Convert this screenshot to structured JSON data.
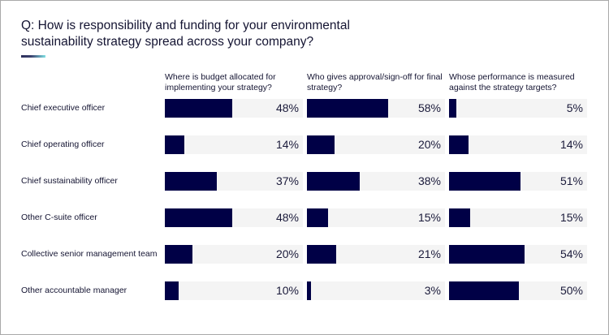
{
  "title": "Q: How is responsibility and funding for your environmental sustainability strategy spread across your company?",
  "colors": {
    "bar": "#000046",
    "track": "#f4f4f4",
    "accent_start": "#2c2f5a",
    "accent_end": "#7fe0e3"
  },
  "chart_data": {
    "type": "bar",
    "orientation": "horizontal",
    "title": "Q: How is responsibility and funding for your environmental sustainability strategy spread across your company?",
    "xlim": [
      0,
      100
    ],
    "unit": "%",
    "categories": [
      "Chief executive officer",
      "Chief operating officer",
      "Chief sustainability officer",
      "Other C-suite officer",
      "Collective senior management team",
      "Other accountable manager"
    ],
    "series": [
      {
        "name": "Where is budget allocated for implementing your strategy?",
        "values": [
          48,
          14,
          37,
          48,
          20,
          10
        ]
      },
      {
        "name": "Who gives approval/sign-off for final strategy?",
        "values": [
          58,
          20,
          38,
          15,
          21,
          3
        ]
      },
      {
        "name": "Whose performance is measured against the strategy targets?",
        "values": [
          5,
          14,
          51,
          15,
          54,
          50
        ]
      }
    ]
  }
}
